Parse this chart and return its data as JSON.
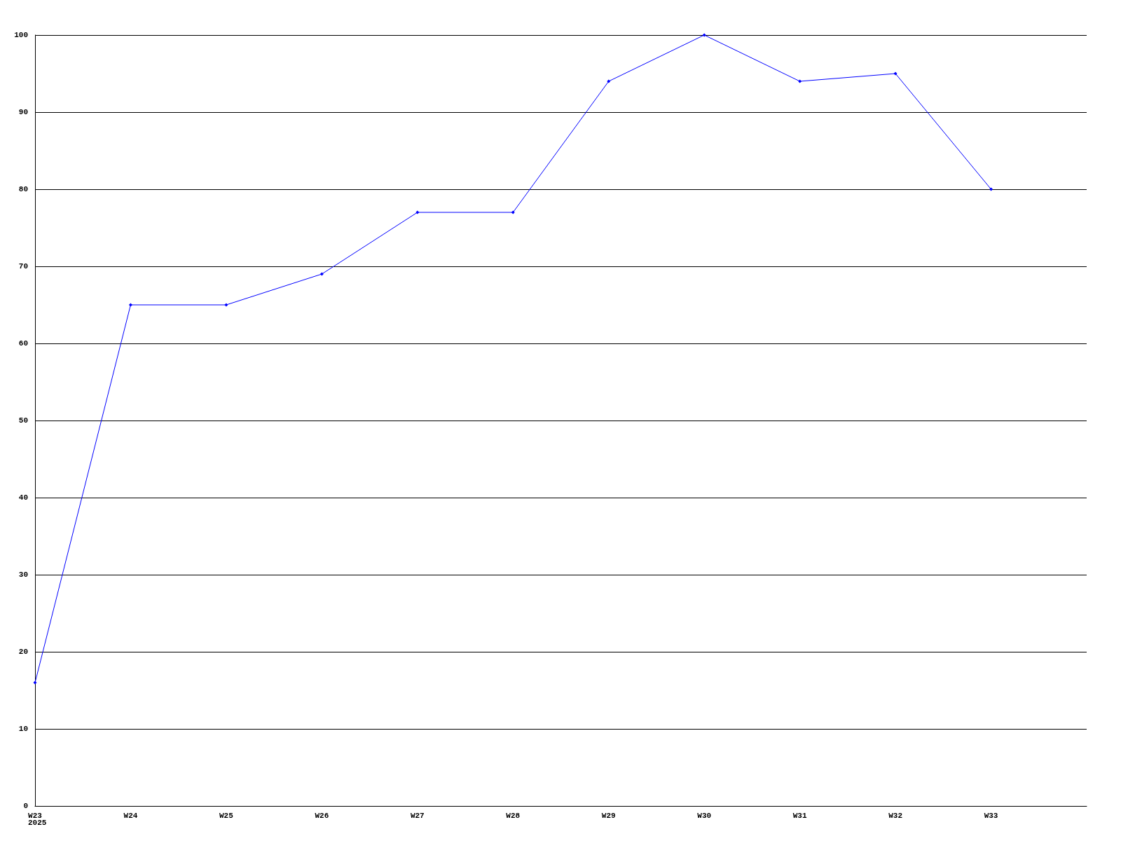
{
  "chart_data": {
    "type": "line",
    "categories": [
      "W23",
      "W24",
      "W25",
      "W26",
      "W27",
      "W28",
      "W29",
      "W30",
      "W31",
      "W32",
      "W33",
      null
    ],
    "series": [
      {
        "color": "#0000ff",
        "values": [
          16,
          65,
          65,
          69,
          77,
          77,
          94,
          100,
          94,
          95,
          80,
          null
        ]
      }
    ],
    "ylim": [
      0,
      100
    ],
    "yticks": [
      0,
      10,
      20,
      30,
      40,
      50,
      60,
      70,
      80,
      90,
      100
    ],
    "annotations": [
      "2025"
    ],
    "grid": "y",
    "marker": "diamond",
    "line_style": "solid"
  }
}
